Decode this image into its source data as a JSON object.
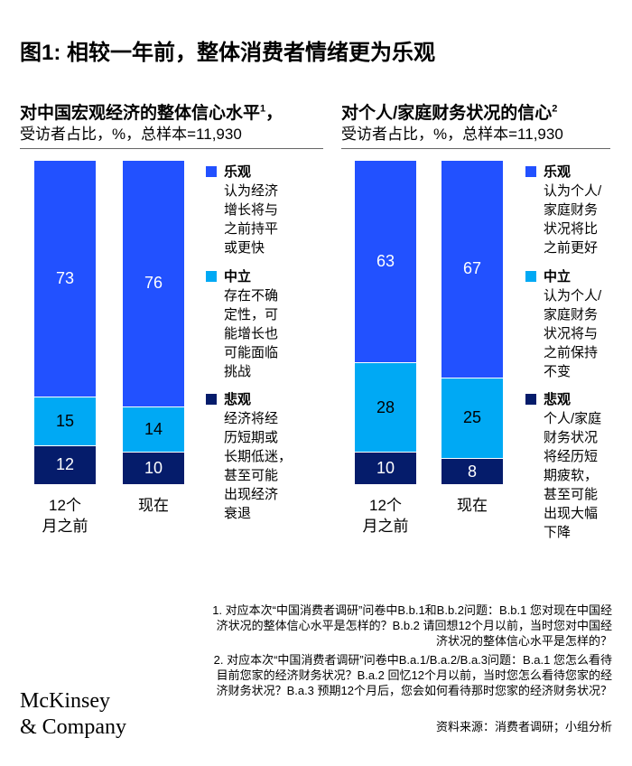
{
  "title": "图1: 相较一年前，整体消费者情绪更为乐观",
  "colors": {
    "optimistic": "#2251ff",
    "neutral": "#00a9f4",
    "pessimistic": "#051c6b"
  },
  "chart_data": [
    {
      "type": "bar",
      "stacked": true,
      "title": "对中国宏观经济的整体信心水平",
      "footnote_ref": "1",
      "subtitle": "受访者占比，%，总样本=11,930",
      "categories": [
        "12个\n月之前",
        "现在"
      ],
      "series": [
        {
          "name": "悲观",
          "values": [
            12,
            10
          ]
        },
        {
          "name": "中立",
          "values": [
            15,
            14
          ]
        },
        {
          "name": "乐观",
          "values": [
            73,
            76
          ]
        }
      ],
      "legend": [
        {
          "label": "乐观",
          "desc": "认为经济\n增长将与\n之前持平\n或更快"
        },
        {
          "label": "中立",
          "desc": "存在不确\n定性，可\n能增长也\n可能面临\n挑战"
        },
        {
          "label": "悲观",
          "desc": "经济将经\n历短期或\n长期低迷，\n甚至可能\n出现经济\n衰退"
        }
      ]
    },
    {
      "type": "bar",
      "stacked": true,
      "title": "对个人/家庭财务状况的信心",
      "footnote_ref": "2",
      "subtitle": "受访者占比，%，总样本=11,930",
      "categories": [
        "12个\n月之前",
        "现在"
      ],
      "series": [
        {
          "name": "悲观",
          "values": [
            10,
            8
          ]
        },
        {
          "name": "中立",
          "values": [
            28,
            25
          ]
        },
        {
          "name": "乐观",
          "values": [
            63,
            67
          ]
        }
      ],
      "legend": [
        {
          "label": "乐观",
          "desc": "认为个人/\n家庭财务\n状况将比\n之前更好"
        },
        {
          "label": "中立",
          "desc": "认为个人/\n家庭财务\n状况将与\n之前保持\n不变"
        },
        {
          "label": "悲观",
          "desc": "个人/家庭\n财务状况\n将经历短\n期疲软，\n甚至可能\n出现大幅\n下降"
        }
      ]
    }
  ],
  "footnotes": [
    "1.   对应本次“中国消费者调研”问卷中B.b.1和B.b.2问题：B.b.1 您对现在中国经济状况的整体信心水平是怎样的？B.b.2 请回想12个月以前，当时您对中国经济状况的整体信心水平是怎样的？",
    "2.   对应本次“中国消费者调研”问卷中B.a.1/B.a.2/B.a.3问题：B.a.1 您怎么看待目前您家的经济财务状况？B.a.2 回忆12个月以前，当时您怎么看待您家的经济财务状况？B.a.3 预期12个月后，您会如何看待那时您家的经济财务状况？"
  ],
  "source": "资料来源：消费者调研；小组分析",
  "logo": "McKinsey\n& Company"
}
